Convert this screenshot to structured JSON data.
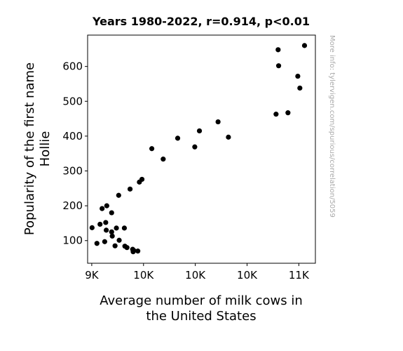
{
  "chart_data": {
    "type": "scatter",
    "title": "Years 1980-2022, r=0.914, p<0.01",
    "xlabel": [
      "Average number of milk cows in",
      "the United States"
    ],
    "ylabel": [
      "Popularity of the first name",
      "Hollie"
    ],
    "side_note": "More info: tylervigen.com/spurious/correlation/5059",
    "xlim": [
      8960,
      11160
    ],
    "ylim": [
      35,
      690
    ],
    "x_ticks": [
      9000,
      9500,
      10000,
      10500,
      11000
    ],
    "x_tick_labels": [
      "9K",
      "10K",
      "10K",
      "10K",
      "11K"
    ],
    "y_ticks": [
      100,
      200,
      300,
      400,
      500,
      600
    ],
    "y_tick_labels": [
      "100",
      "200",
      "300",
      "400",
      "500",
      "600"
    ],
    "grid": false,
    "marker_color": "#000000",
    "points": [
      {
        "x": 9003,
        "y": 137
      },
      {
        "x": 9050,
        "y": 92
      },
      {
        "x": 9080,
        "y": 147
      },
      {
        "x": 9100,
        "y": 192
      },
      {
        "x": 9125,
        "y": 97
      },
      {
        "x": 9135,
        "y": 152
      },
      {
        "x": 9140,
        "y": 130
      },
      {
        "x": 9145,
        "y": 200
      },
      {
        "x": 9192,
        "y": 180
      },
      {
        "x": 9192,
        "y": 125
      },
      {
        "x": 9198,
        "y": 113
      },
      {
        "x": 9225,
        "y": 85
      },
      {
        "x": 9238,
        "y": 136
      },
      {
        "x": 9260,
        "y": 230
      },
      {
        "x": 9265,
        "y": 101
      },
      {
        "x": 9315,
        "y": 136
      },
      {
        "x": 9320,
        "y": 84
      },
      {
        "x": 9340,
        "y": 80
      },
      {
        "x": 9370,
        "y": 248
      },
      {
        "x": 9395,
        "y": 75
      },
      {
        "x": 9400,
        "y": 68
      },
      {
        "x": 9405,
        "y": 72
      },
      {
        "x": 9445,
        "y": 70
      },
      {
        "x": 9460,
        "y": 268
      },
      {
        "x": 9485,
        "y": 276
      },
      {
        "x": 9580,
        "y": 364
      },
      {
        "x": 9690,
        "y": 334
      },
      {
        "x": 9830,
        "y": 394
      },
      {
        "x": 9995,
        "y": 369
      },
      {
        "x": 10040,
        "y": 415
      },
      {
        "x": 10220,
        "y": 441
      },
      {
        "x": 10320,
        "y": 397
      },
      {
        "x": 10780,
        "y": 463
      },
      {
        "x": 10800,
        "y": 648
      },
      {
        "x": 10805,
        "y": 602
      },
      {
        "x": 10895,
        "y": 467
      },
      {
        "x": 10990,
        "y": 572
      },
      {
        "x": 11010,
        "y": 538
      },
      {
        "x": 11055,
        "y": 660
      }
    ]
  }
}
